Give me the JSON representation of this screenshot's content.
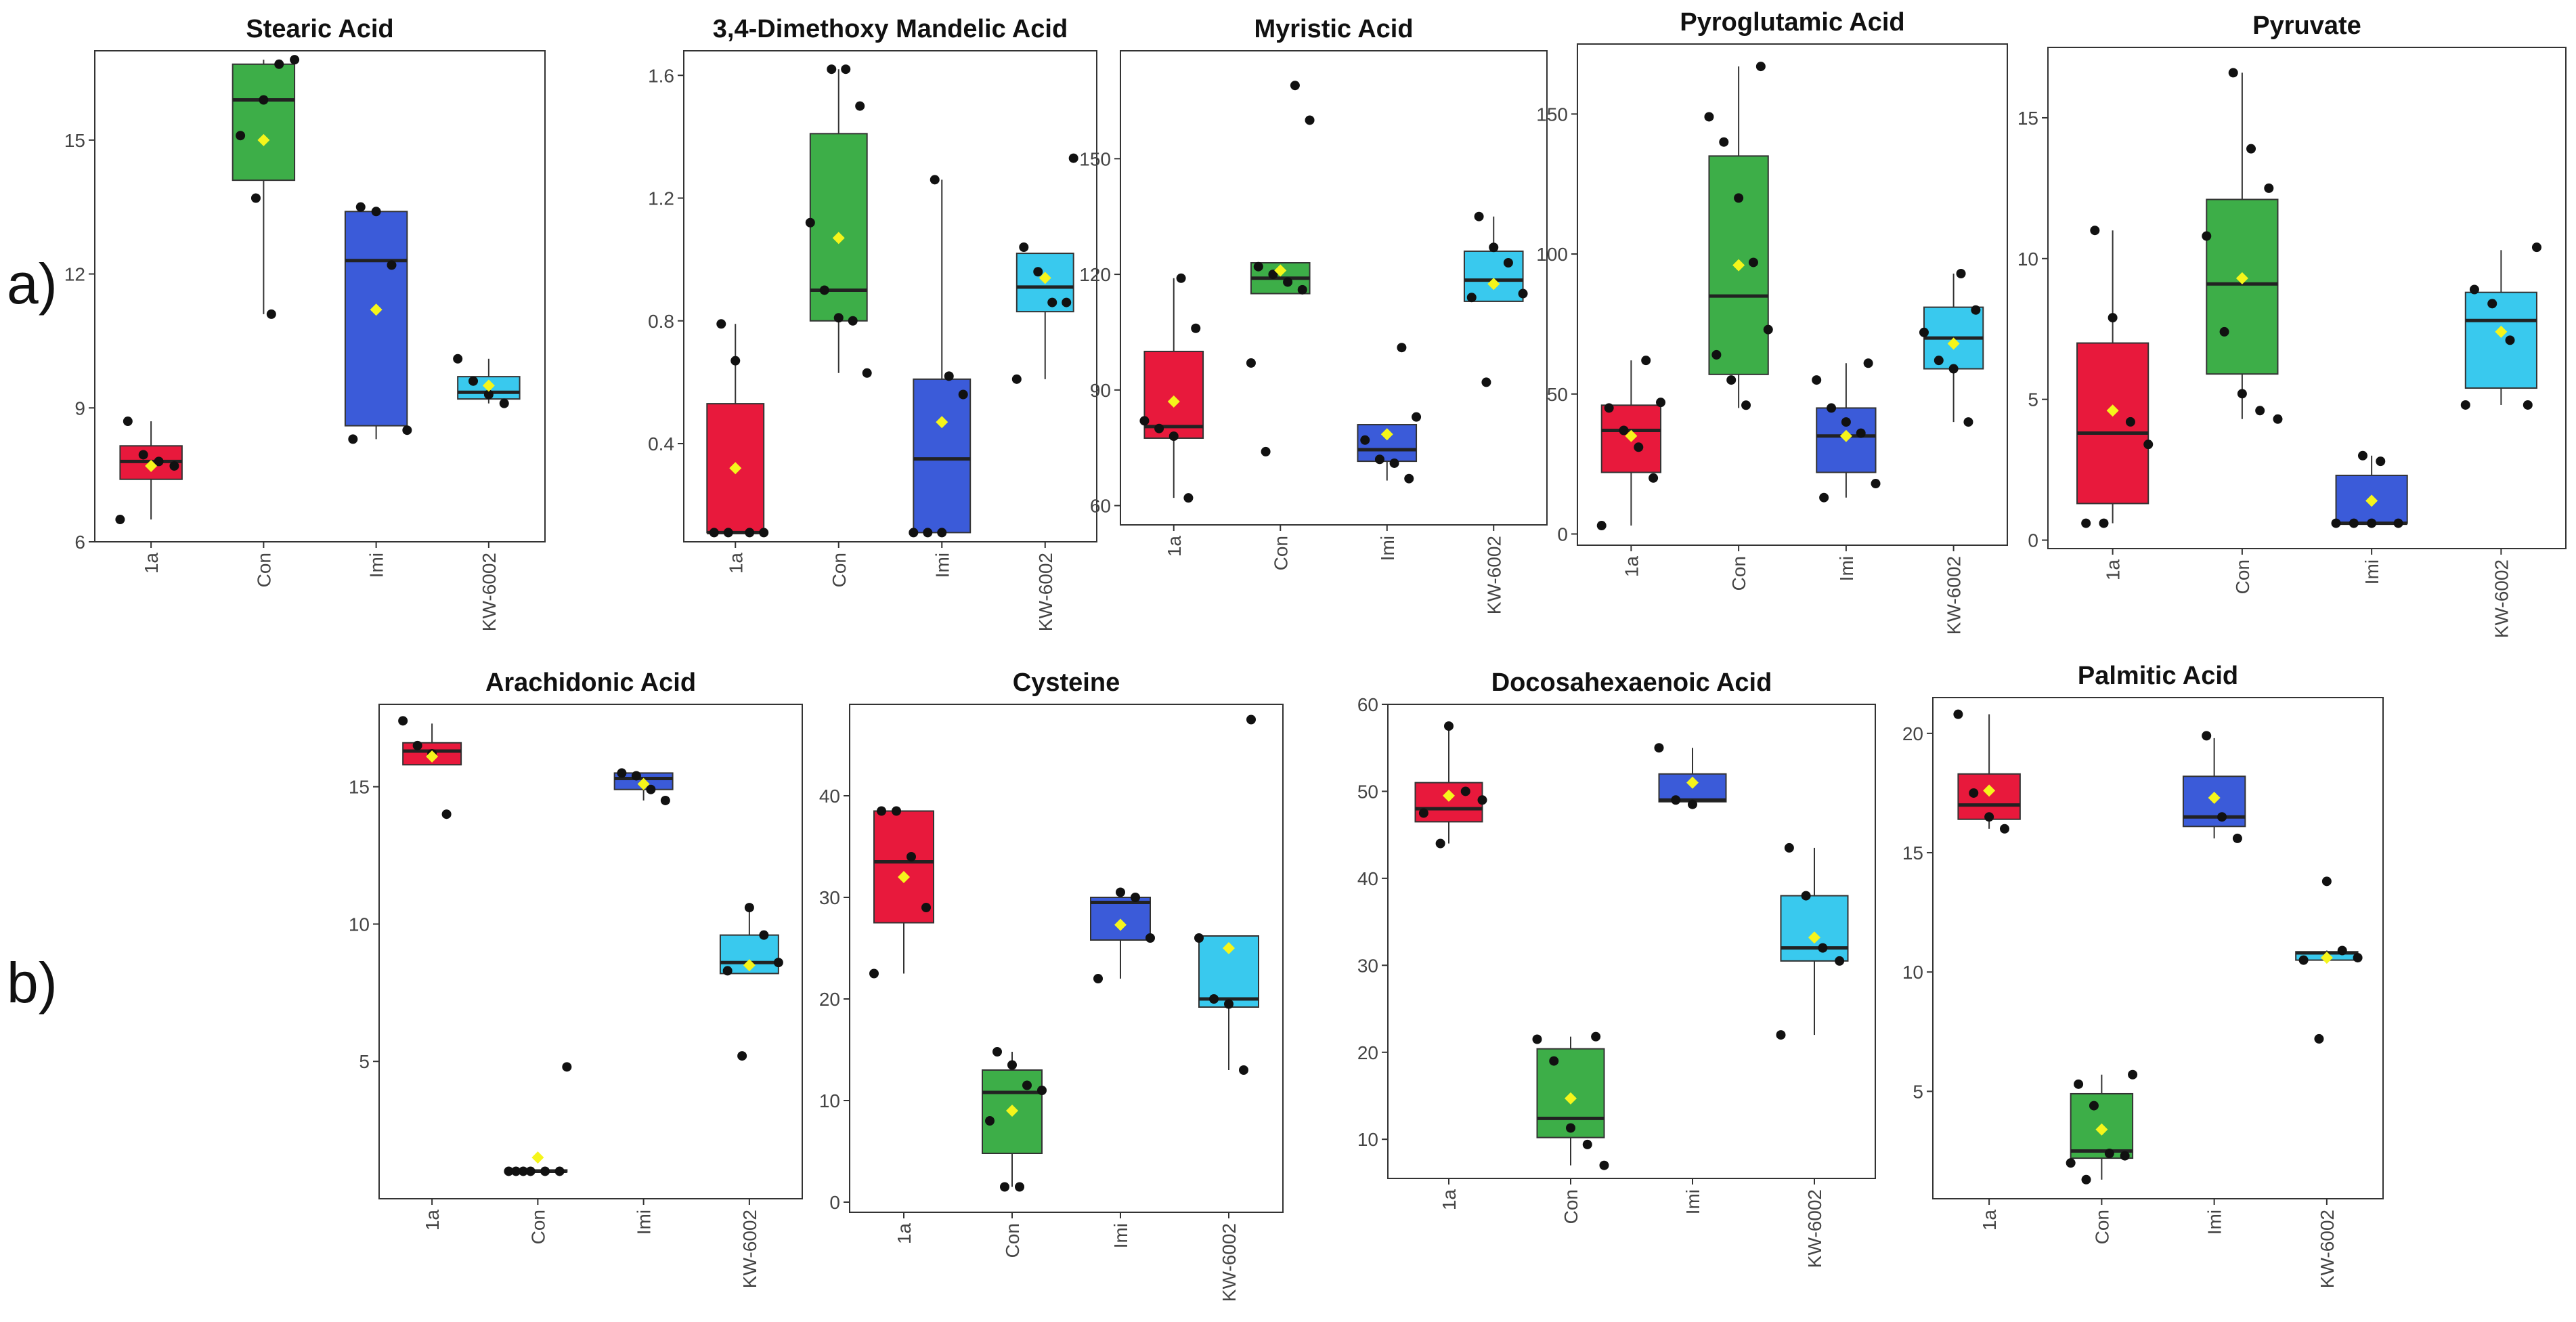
{
  "figure": {
    "row_labels": [
      "a)",
      "b)"
    ],
    "group_colors": {
      "1a": "#E8193C",
      "Con": "#3DAE48",
      "Imi": "#3B5BD9",
      "KW-6002": "#39C9EE"
    },
    "mean_marker_color": "#F5F51B"
  },
  "chart_data": [
    {
      "type": "box",
      "title": "Stearic Acid",
      "categories": [
        "1a",
        "Con",
        "Imi",
        "KW-6002"
      ],
      "ylim": [
        6,
        17
      ],
      "yticks": [
        6,
        9,
        12,
        15
      ],
      "boxes": [
        {
          "q1": 7.4,
          "median": 7.8,
          "q3": 8.15,
          "whisker_low": 6.5,
          "whisker_high": 8.7,
          "mean": 7.7,
          "points": [
            6.5,
            7.7,
            7.8,
            7.95,
            8.7
          ]
        },
        {
          "q1": 14.1,
          "median": 15.9,
          "q3": 16.7,
          "whisker_low": 11.1,
          "whisker_high": 16.8,
          "mean": 15.0,
          "points": [
            11.1,
            13.7,
            15.1,
            16.8,
            16.7,
            15.9
          ]
        },
        {
          "q1": 8.6,
          "median": 12.3,
          "q3": 13.4,
          "whisker_low": 8.3,
          "whisker_high": 13.5,
          "mean": 11.2,
          "points": [
            8.3,
            8.5,
            12.2,
            13.4,
            13.5
          ]
        },
        {
          "q1": 9.2,
          "median": 9.35,
          "q3": 9.7,
          "whisker_low": 9.1,
          "whisker_high": 10.1,
          "mean": 9.5,
          "points": [
            9.1,
            9.3,
            9.6,
            10.1
          ]
        }
      ]
    },
    {
      "type": "box",
      "title": "3,4-Dimethoxy Mandelic Acid",
      "categories": [
        "1a",
        "Con",
        "Imi",
        "KW-6002"
      ],
      "ylim": [
        0.08,
        1.68
      ],
      "yticks": [
        0.4,
        0.8,
        1.2,
        1.6
      ],
      "boxes": [
        {
          "q1": 0.11,
          "median": 0.11,
          "q3": 0.53,
          "whisker_low": 0.11,
          "whisker_high": 0.79,
          "mean": 0.32,
          "points": [
            0.11,
            0.11,
            0.11,
            0.11,
            0.67,
            0.79
          ]
        },
        {
          "q1": 0.8,
          "median": 0.9,
          "q3": 1.41,
          "whisker_low": 0.63,
          "whisker_high": 1.62,
          "mean": 1.07,
          "points": [
            0.63,
            0.8,
            0.81,
            0.9,
            1.12,
            1.5,
            1.62,
            1.62
          ]
        },
        {
          "q1": 0.11,
          "median": 0.35,
          "q3": 0.61,
          "whisker_low": 0.11,
          "whisker_high": 1.26,
          "mean": 0.47,
          "points": [
            0.11,
            0.11,
            0.11,
            0.56,
            0.62,
            1.26
          ]
        },
        {
          "q1": 0.83,
          "median": 0.91,
          "q3": 1.02,
          "whisker_low": 0.61,
          "whisker_high": 1.02,
          "mean": 0.94,
          "points": [
            0.61,
            0.86,
            0.86,
            0.96,
            1.04,
            1.33
          ]
        }
      ]
    },
    {
      "type": "box",
      "title": "Myristic Acid",
      "categories": [
        "1a",
        "Con",
        "Imi",
        "KW-6002"
      ],
      "ylim": [
        55,
        178
      ],
      "yticks": [
        60,
        90,
        120,
        150
      ],
      "boxes": [
        {
          "q1": 77.5,
          "median": 80.5,
          "q3": 100,
          "whisker_low": 62,
          "whisker_high": 119,
          "mean": 87,
          "points": [
            62,
            78,
            80,
            82,
            106,
            119
          ]
        },
        {
          "q1": 115,
          "median": 119,
          "q3": 123,
          "whisker_low": 115,
          "whisker_high": 123,
          "mean": 121,
          "points": [
            74,
            97,
            116,
            118,
            120,
            122,
            160,
            169
          ]
        },
        {
          "q1": 71.5,
          "median": 74.5,
          "q3": 81,
          "whisker_low": 66.5,
          "whisker_high": 81,
          "mean": 78.5,
          "points": [
            67,
            71,
            72,
            77,
            83,
            101
          ]
        },
        {
          "q1": 113,
          "median": 118.5,
          "q3": 126,
          "whisker_low": 113,
          "whisker_high": 135,
          "mean": 117.5,
          "points": [
            92,
            114,
            115,
            123,
            127,
            135
          ]
        }
      ]
    },
    {
      "type": "box",
      "title": "Pyroglutamic Acid",
      "categories": [
        "1a",
        "Con",
        "Imi",
        "KW-6002"
      ],
      "ylim": [
        -4,
        175
      ],
      "yticks": [
        0,
        50,
        100,
        150
      ],
      "boxes": [
        {
          "q1": 22,
          "median": 37,
          "q3": 46,
          "whisker_low": 3,
          "whisker_high": 62,
          "mean": 35,
          "points": [
            3,
            20,
            31,
            37,
            45,
            47,
            62
          ]
        },
        {
          "q1": 57,
          "median": 85,
          "q3": 135,
          "whisker_low": 45,
          "whisker_high": 167,
          "mean": 96,
          "points": [
            46,
            55,
            64,
            73,
            97,
            120,
            140,
            149,
            167
          ]
        },
        {
          "q1": 22,
          "median": 35,
          "q3": 45,
          "whisker_low": 13,
          "whisker_high": 61,
          "mean": 35,
          "points": [
            13,
            18,
            36,
            40,
            45,
            55,
            61
          ]
        },
        {
          "q1": 59,
          "median": 70,
          "q3": 81,
          "whisker_low": 40,
          "whisker_high": 93,
          "mean": 68,
          "points": [
            40,
            59,
            62,
            72,
            80,
            93
          ]
        }
      ]
    },
    {
      "type": "box",
      "title": "Pyruvate",
      "categories": [
        "1a",
        "Con",
        "Imi",
        "KW-6002"
      ],
      "ylim": [
        -0.3,
        17.5
      ],
      "yticks": [
        0,
        5,
        10,
        15
      ],
      "boxes": [
        {
          "q1": 1.3,
          "median": 3.8,
          "q3": 7.0,
          "whisker_low": 0.6,
          "whisker_high": 11.0,
          "mean": 4.6,
          "points": [
            0.6,
            0.6,
            3.4,
            4.2,
            7.9,
            11.0
          ]
        },
        {
          "q1": 5.9,
          "median": 9.1,
          "q3": 12.1,
          "whisker_low": 4.3,
          "whisker_high": 16.6,
          "mean": 9.3,
          "points": [
            4.3,
            4.6,
            5.2,
            7.4,
            10.8,
            12.5,
            13.9,
            16.6
          ]
        },
        {
          "q1": 0.6,
          "median": 0.6,
          "q3": 2.3,
          "whisker_low": 0.6,
          "whisker_high": 3.0,
          "mean": 1.4,
          "points": [
            0.6,
            0.6,
            0.6,
            0.6,
            2.8,
            3.0
          ]
        },
        {
          "q1": 5.4,
          "median": 7.8,
          "q3": 8.8,
          "whisker_low": 4.8,
          "whisker_high": 10.3,
          "mean": 7.4,
          "points": [
            4.8,
            4.8,
            7.1,
            8.4,
            8.9,
            10.4
          ]
        }
      ]
    },
    {
      "type": "box",
      "title": "Arachidonic Acid",
      "categories": [
        "1a",
        "Con",
        "Imi",
        "KW-6002"
      ],
      "ylim": [
        0,
        18
      ],
      "yticks": [
        5,
        10,
        15
      ],
      "boxes": [
        {
          "q1": 15.8,
          "median": 16.3,
          "q3": 16.6,
          "whisker_low": 15.8,
          "whisker_high": 17.3,
          "mean": 16.1,
          "points": [
            14.0,
            16.2,
            16.5,
            17.4
          ]
        },
        {
          "q1": 1.0,
          "median": 1.0,
          "q3": 1.05,
          "whisker_low": 1.0,
          "whisker_high": 1.05,
          "mean": 1.5,
          "points": [
            1.0,
            1.0,
            1.0,
            1.0,
            1.0,
            1.0,
            4.8
          ]
        },
        {
          "q1": 14.9,
          "median": 15.3,
          "q3": 15.5,
          "whisker_low": 14.5,
          "whisker_high": 15.5,
          "mean": 15.1,
          "points": [
            14.5,
            14.9,
            15.4,
            15.5
          ]
        },
        {
          "q1": 8.2,
          "median": 8.6,
          "q3": 9.6,
          "whisker_low": 8.2,
          "whisker_high": 10.6,
          "mean": 8.5,
          "points": [
            5.2,
            8.3,
            8.6,
            9.6,
            10.6
          ]
        }
      ]
    },
    {
      "type": "box",
      "title": "Cysteine",
      "categories": [
        "1a",
        "Con",
        "Imi",
        "KW-6002"
      ],
      "ylim": [
        -1,
        49
      ],
      "yticks": [
        0,
        10,
        20,
        30,
        40
      ],
      "boxes": [
        {
          "q1": 27.5,
          "median": 33.5,
          "q3": 38.5,
          "whisker_low": 22.5,
          "whisker_high": 38.5,
          "mean": 32,
          "points": [
            22.5,
            29,
            34,
            38.5,
            38.5
          ]
        },
        {
          "q1": 4.8,
          "median": 10.8,
          "q3": 13.0,
          "whisker_low": 1.5,
          "whisker_high": 14.8,
          "mean": 9,
          "points": [
            1.5,
            1.5,
            8,
            11,
            11.5,
            13.5,
            14.8
          ]
        },
        {
          "q1": 25.8,
          "median": 29.5,
          "q3": 30.0,
          "whisker_low": 22,
          "whisker_high": 30.5,
          "mean": 27.3,
          "points": [
            22,
            26,
            30,
            30.5
          ]
        },
        {
          "q1": 19.2,
          "median": 20.0,
          "q3": 26.2,
          "whisker_low": 13,
          "whisker_high": 26.2,
          "mean": 25,
          "points": [
            13,
            19.5,
            20,
            26,
            47.5
          ]
        }
      ]
    },
    {
      "type": "box",
      "title": "Docosahexaenoic Acid",
      "categories": [
        "1a",
        "Con",
        "Imi",
        "KW-6002"
      ],
      "ylim": [
        5.5,
        60
      ],
      "yticks": [
        10,
        20,
        30,
        40,
        50,
        60
      ],
      "boxes": [
        {
          "q1": 46.5,
          "median": 48,
          "q3": 51,
          "whisker_low": 44,
          "whisker_high": 57.5,
          "mean": 49.5,
          "points": [
            44,
            47.5,
            49,
            50,
            57.5
          ]
        },
        {
          "q1": 10.2,
          "median": 12.4,
          "q3": 20.4,
          "whisker_low": 7,
          "whisker_high": 21.8,
          "mean": 14.7,
          "points": [
            7,
            9.4,
            11.3,
            19,
            21.5,
            21.8
          ]
        },
        {
          "q1": 48.8,
          "median": 49,
          "q3": 52,
          "whisker_low": 48.5,
          "whisker_high": 55,
          "mean": 51,
          "points": [
            48.5,
            49,
            55
          ]
        },
        {
          "q1": 30.5,
          "median": 32,
          "q3": 38,
          "whisker_low": 22,
          "whisker_high": 43.5,
          "mean": 33.2,
          "points": [
            22,
            30.5,
            32,
            38,
            43.5
          ]
        }
      ]
    },
    {
      "type": "box",
      "title": "Palmitic Acid",
      "categories": [
        "1a",
        "Con",
        "Imi",
        "KW-6002"
      ],
      "ylim": [
        0.5,
        21.5
      ],
      "yticks": [
        5,
        10,
        15,
        20
      ],
      "boxes": [
        {
          "q1": 16.4,
          "median": 17.0,
          "q3": 18.3,
          "whisker_low": 16.0,
          "whisker_high": 20.8,
          "mean": 17.6,
          "points": [
            16.0,
            16.5,
            17.5,
            20.8
          ]
        },
        {
          "q1": 2.2,
          "median": 2.5,
          "q3": 4.9,
          "whisker_low": 1.3,
          "whisker_high": 5.7,
          "mean": 3.4,
          "points": [
            1.3,
            2.0,
            2.3,
            2.4,
            4.4,
            5.3,
            5.7
          ]
        },
        {
          "q1": 16.1,
          "median": 16.5,
          "q3": 18.2,
          "whisker_low": 15.6,
          "whisker_high": 19.8,
          "mean": 17.3,
          "points": [
            15.6,
            16.5,
            19.9
          ]
        },
        {
          "q1": 10.5,
          "median": 10.8,
          "q3": 10.85,
          "whisker_low": 10.5,
          "whisker_high": 10.9,
          "mean": 10.6,
          "points": [
            7.2,
            10.5,
            10.6,
            10.9,
            13.8
          ]
        }
      ]
    }
  ]
}
